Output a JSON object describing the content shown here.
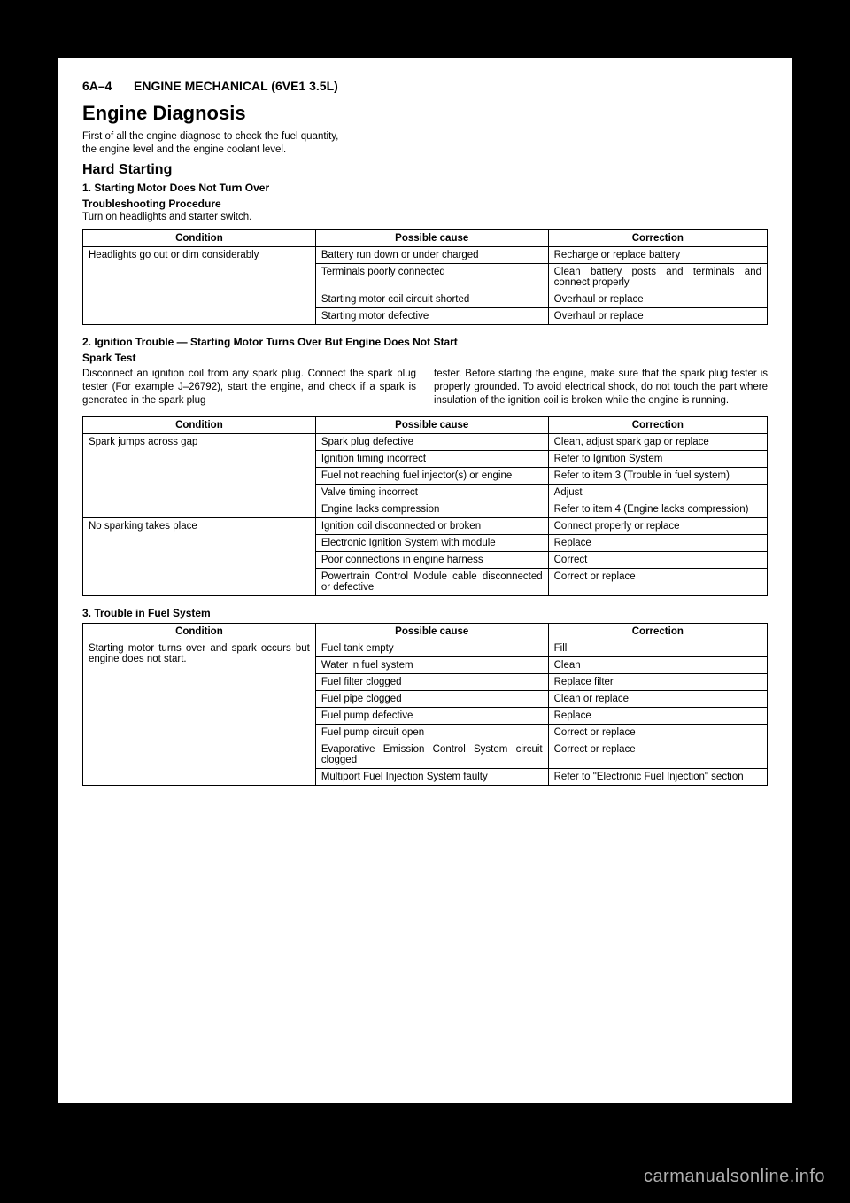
{
  "header": {
    "page_number": "6A–4",
    "title": "ENGINE MECHANICAL (6VE1 3.5L)"
  },
  "section_title": "Engine Diagnosis",
  "intro_line1": "First of all the engine diagnose to check the fuel quantity,",
  "intro_line2": "the engine level and the engine coolant level.",
  "hard_starting": "Hard Starting",
  "item1_heading": "1. Starting Motor Does Not Turn Over",
  "troubleshoot_heading": "Troubleshooting Procedure",
  "troubleshoot_text": "Turn on headlights and starter switch.",
  "columns": {
    "condition": "Condition",
    "cause": "Possible cause",
    "correction": "Correction"
  },
  "table1": {
    "condition": "Headlights go out or dim considerably",
    "rows": [
      {
        "cause": "Battery run down or under charged",
        "correction": "Recharge or replace battery"
      },
      {
        "cause": "Terminals poorly connected",
        "correction": "Clean battery posts and terminals and connect properly"
      },
      {
        "cause": "Starting motor coil circuit shorted",
        "correction": "Overhaul or replace"
      },
      {
        "cause": "Starting motor defective",
        "correction": "Overhaul or replace"
      }
    ]
  },
  "item2_heading": "2. Ignition Trouble — Starting Motor Turns Over But Engine Does Not Start",
  "spark_test": "Spark Test",
  "spark_left": "Disconnect an ignition coil from any spark plug. Connect the spark plug tester (For example J–26792), start the engine, and check if a spark is generated in the spark plug",
  "spark_right": "tester.  Before starting the engine, make sure that the spark plug tester is properly grounded. To avoid electrical shock, do not touch the part where insulation of the ignition coil is broken while the engine is running.",
  "table2": {
    "group1_condition": "Spark jumps across gap",
    "group1_rows": [
      {
        "cause": "Spark plug defective",
        "correction": "Clean, adjust spark gap or replace"
      },
      {
        "cause": "Ignition timing incorrect",
        "correction": "Refer to Ignition System"
      },
      {
        "cause": "Fuel not reaching fuel injector(s) or engine",
        "correction": "Refer to item 3 (Trouble in fuel system)"
      },
      {
        "cause": "Valve timing incorrect",
        "correction": "Adjust"
      },
      {
        "cause": "Engine lacks compression",
        "correction": "Refer to item 4 (Engine lacks compression)"
      }
    ],
    "group2_condition": "No sparking takes place",
    "group2_rows": [
      {
        "cause": "Ignition coil disconnected or broken",
        "correction": "Connect properly or replace"
      },
      {
        "cause": "Electronic Ignition System with module",
        "correction": "Replace"
      },
      {
        "cause": "Poor connections in engine harness",
        "correction": "Correct"
      },
      {
        "cause": "Powertrain Control Module cable disconnected or defective",
        "correction": "Correct or replace"
      }
    ]
  },
  "item3_heading": "3. Trouble in Fuel System",
  "table3": {
    "condition": "Starting motor turns over and spark occurs but engine does not start.",
    "rows": [
      {
        "cause": "Fuel tank empty",
        "correction": "Fill"
      },
      {
        "cause": "Water in fuel system",
        "correction": "Clean"
      },
      {
        "cause": "Fuel filter clogged",
        "correction": "Replace filter"
      },
      {
        "cause": "Fuel pipe clogged",
        "correction": "Clean or replace"
      },
      {
        "cause": "Fuel pump defective",
        "correction": "Replace"
      },
      {
        "cause": "Fuel pump circuit open",
        "correction": "Correct or replace"
      },
      {
        "cause": "Evaporative Emission Control System circuit clogged",
        "correction": "Correct or replace"
      },
      {
        "cause": "Multiport Fuel Injection System faulty",
        "correction": "Refer to \"Electronic Fuel Injection\" section"
      }
    ]
  },
  "watermark": "carmanualsonline.info"
}
